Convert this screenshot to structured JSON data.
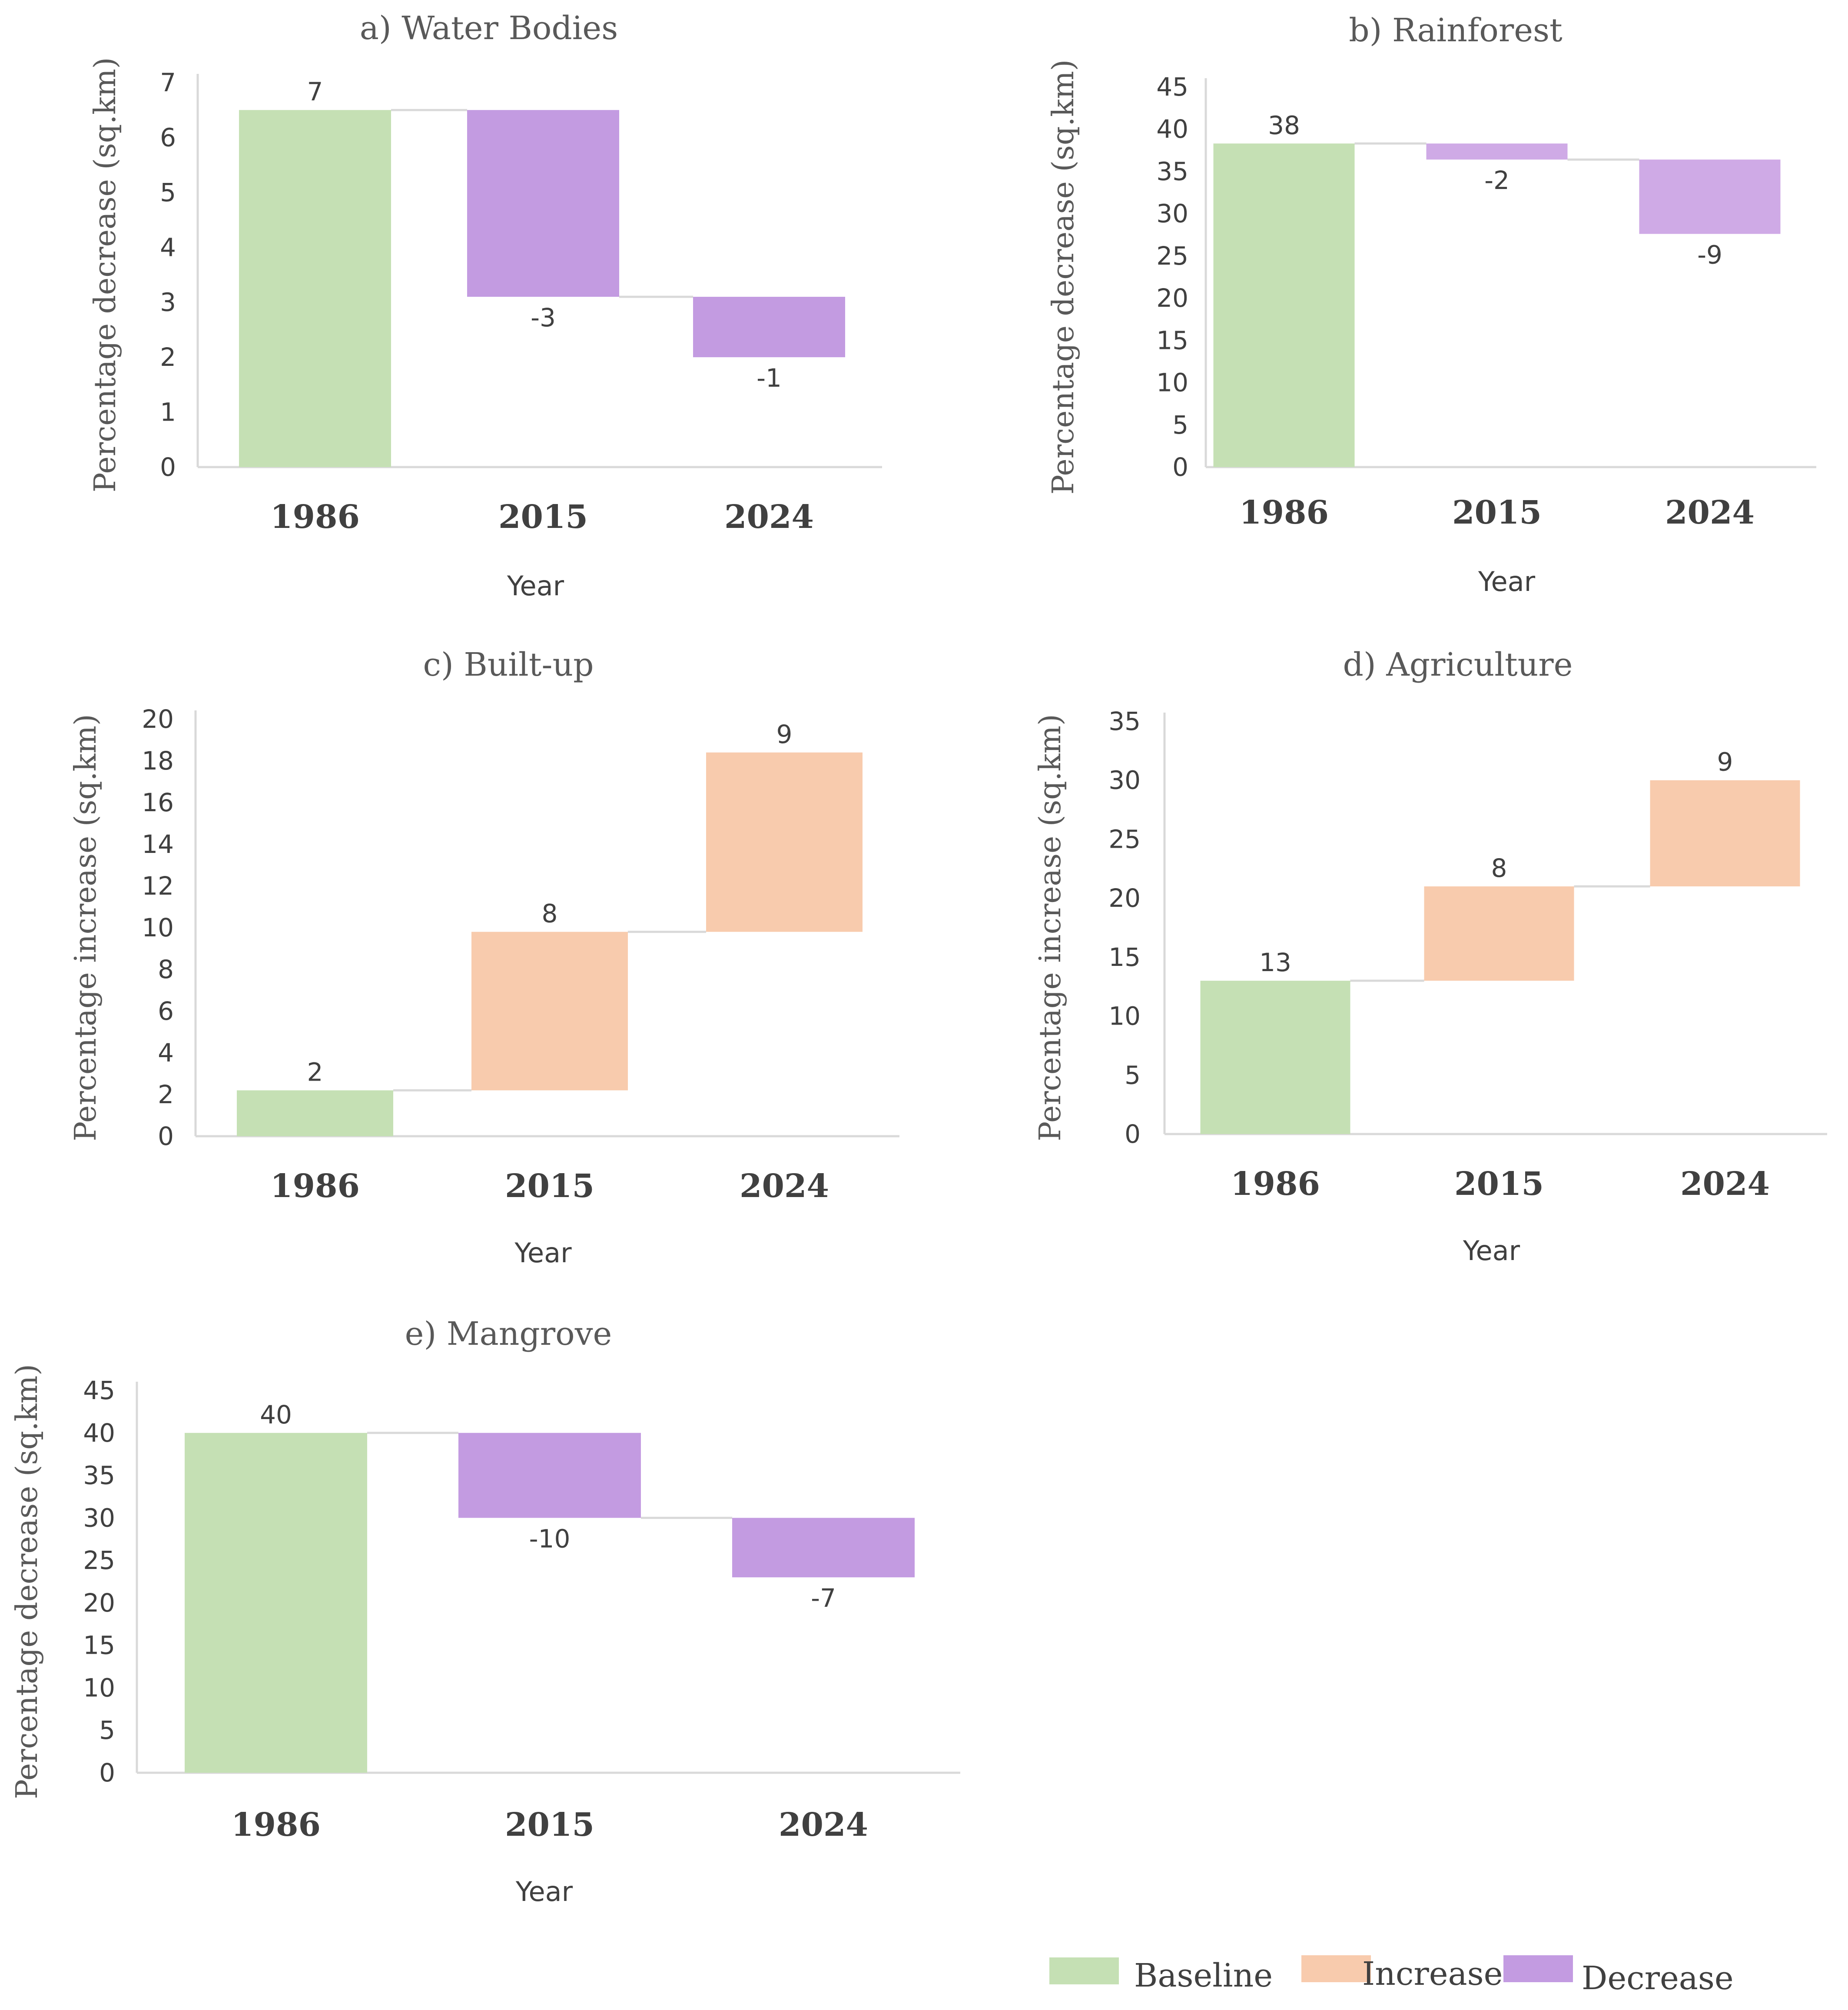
{
  "colors": {
    "baseline": "#c5e0b4",
    "increase": "#f8cbad",
    "decrease_a": "#c39be1",
    "decrease_b": "#cfaae6",
    "axis": "#d9d9d9",
    "connector": "#d9d9d9"
  },
  "legend": {
    "items": [
      {
        "label": "Baseline",
        "color_key": "baseline"
      },
      {
        "label": "Increase",
        "color_key": "increase"
      },
      {
        "label": "Decrease",
        "color_key": "decrease_a"
      }
    ]
  },
  "chart_data": [
    {
      "id": "a",
      "type": "waterfall",
      "title": "a) Water Bodies",
      "xlabel": "Year",
      "ylabel": "Percentage decrease (sq.km)",
      "categories": [
        "1986",
        "2015",
        "2024"
      ],
      "values": [
        6.5,
        -3.4,
        -1.1
      ],
      "labels": [
        "7",
        "-3",
        "-1"
      ],
      "kinds": [
        "baseline",
        "decrease",
        "decrease"
      ],
      "decrease_color_key": "decrease_a",
      "ylim": [
        0,
        7
      ],
      "yticks": [
        0,
        1,
        2,
        3,
        4,
        5,
        6,
        7
      ],
      "grid": false,
      "legend": "bottom-right"
    },
    {
      "id": "b",
      "type": "waterfall",
      "title": "b) Rainforest",
      "xlabel": "Year",
      "ylabel": "Percentage decrease (sq.km)",
      "categories": [
        "1986",
        "2015",
        "2024"
      ],
      "values": [
        38.3,
        -1.9,
        -8.8
      ],
      "labels": [
        "38",
        "-2",
        "-9"
      ],
      "kinds": [
        "baseline",
        "decrease",
        "decrease"
      ],
      "decrease_color_key": "decrease_b",
      "ylim": [
        0,
        45
      ],
      "yticks": [
        0,
        5,
        10,
        15,
        20,
        25,
        30,
        35,
        40,
        45
      ],
      "grid": false
    },
    {
      "id": "c",
      "type": "waterfall",
      "title": "c) Built-up",
      "xlabel": "Year",
      "ylabel": "Percentage increase (sq.km)",
      "categories": [
        "1986",
        "2015",
        "2024"
      ],
      "values": [
        2.2,
        7.6,
        8.6
      ],
      "labels": [
        "2",
        "8",
        "9"
      ],
      "kinds": [
        "baseline",
        "increase",
        "increase"
      ],
      "ylim": [
        0,
        20
      ],
      "yticks": [
        0,
        2,
        4,
        6,
        8,
        10,
        12,
        14,
        16,
        18,
        20
      ],
      "grid": false
    },
    {
      "id": "d",
      "type": "waterfall",
      "title": "d) Agriculture",
      "xlabel": "Year",
      "ylabel": "Percentage increase (sq.km)",
      "categories": [
        "1986",
        "2015",
        "2024"
      ],
      "values": [
        13,
        8,
        9
      ],
      "labels": [
        "13",
        "8",
        "9"
      ],
      "kinds": [
        "baseline",
        "increase",
        "increase"
      ],
      "ylim": [
        0,
        35
      ],
      "yticks": [
        0,
        5,
        10,
        15,
        20,
        25,
        30,
        35
      ],
      "grid": false
    },
    {
      "id": "e",
      "type": "waterfall",
      "title": "e) Mangrove",
      "xlabel": "Year",
      "ylabel": "Percentage decrease (sq.km)",
      "categories": [
        "1986",
        "2015",
        "2024"
      ],
      "values": [
        40,
        -10,
        -7
      ],
      "labels": [
        "40",
        "-10",
        "-7"
      ],
      "kinds": [
        "baseline",
        "decrease",
        "decrease"
      ],
      "decrease_color_key": "decrease_a",
      "ylim": [
        0,
        45
      ],
      "yticks": [
        0,
        5,
        10,
        15,
        20,
        25,
        30,
        35,
        40,
        45
      ],
      "grid": false
    }
  ]
}
